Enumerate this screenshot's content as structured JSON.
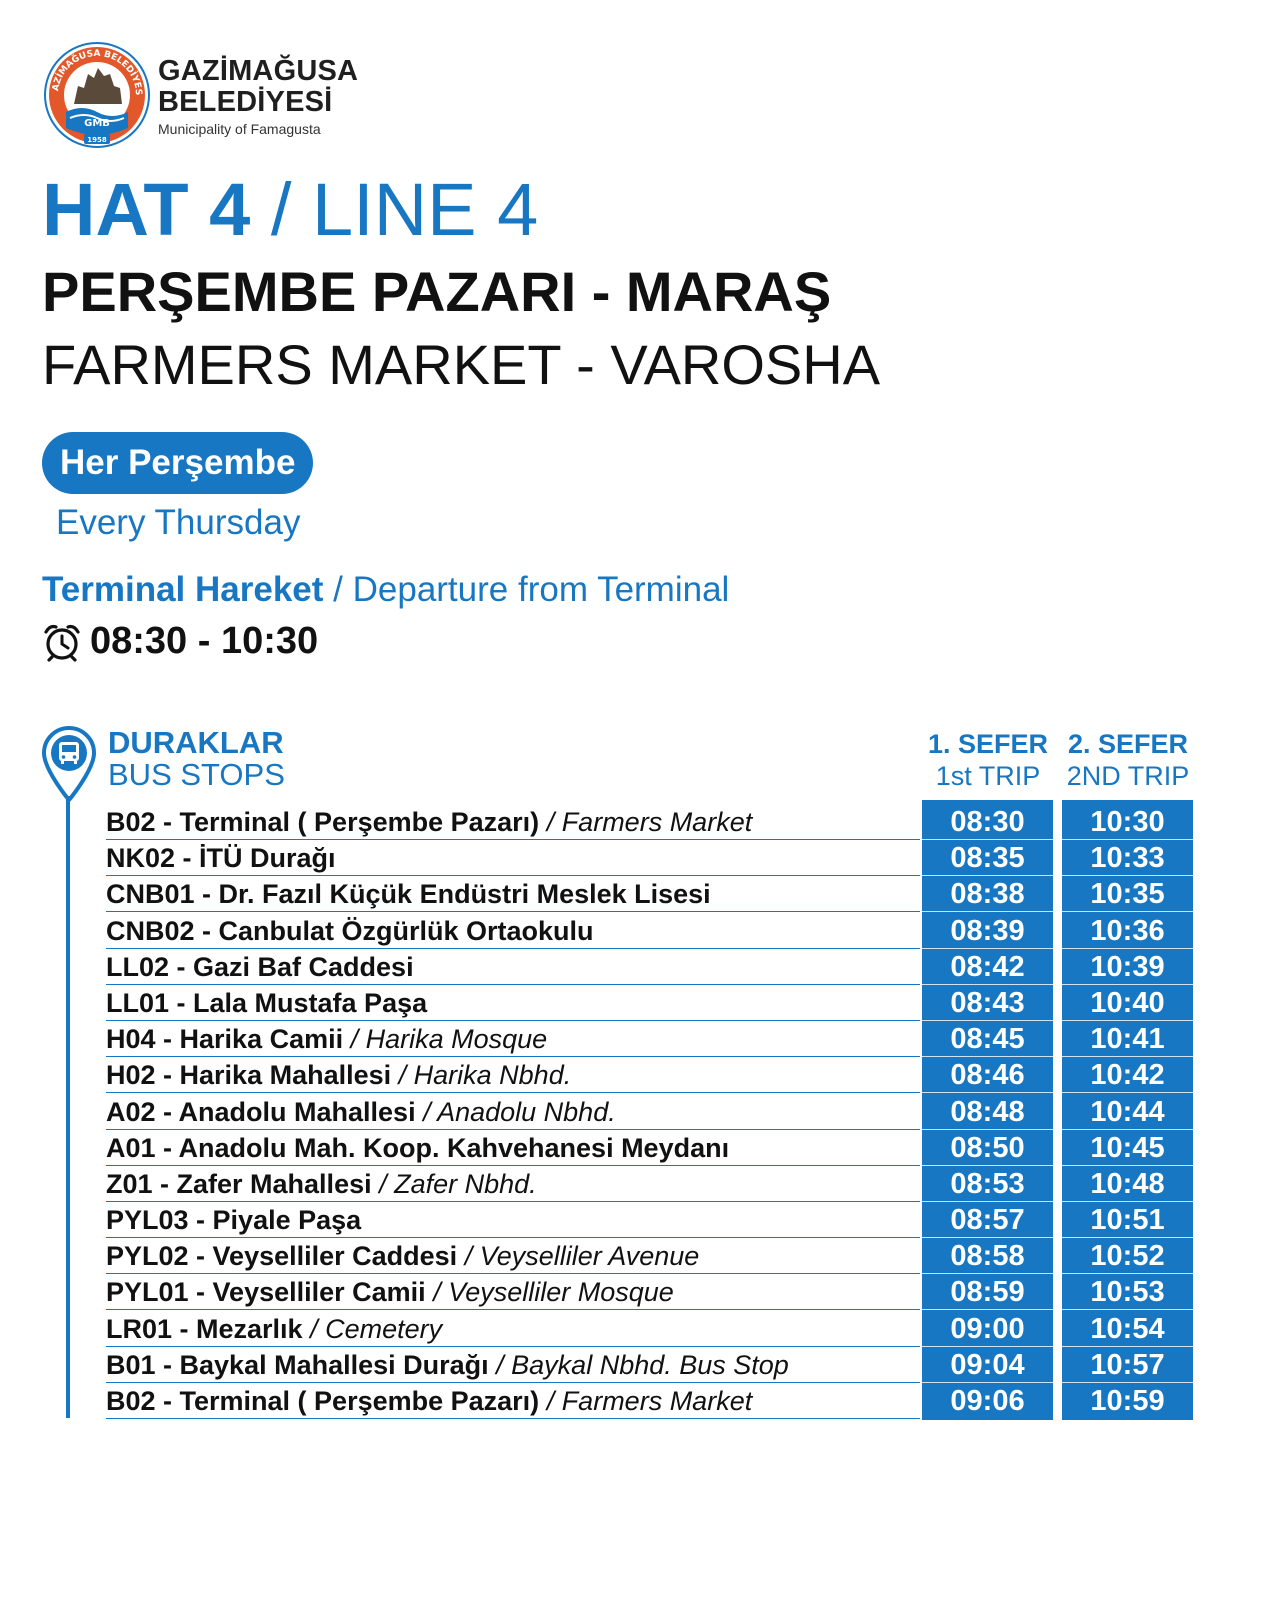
{
  "header": {
    "brand_name_line1": "GAZİMAĞUSA",
    "brand_name_line2": "BELEDİYESİ",
    "brand_subtitle": "Municipality of Famagusta",
    "seal_text": "GAZİMAĞUSA BELEDİYESİ",
    "seal_monogram": "GMB",
    "seal_year": "1958"
  },
  "title": {
    "hat": "HAT 4",
    "separator": " / ",
    "line": "LINE 4",
    "route_tr": "PERŞEMBE PAZARI - MARAŞ",
    "route_en": "FARMERS MARKET - VAROSHA"
  },
  "schedule": {
    "day_tr": "Her Perşembe",
    "day_en": "Every Thursday",
    "departure_tr": "Terminal Hareket",
    "departure_sep": " / ",
    "departure_en": "Departure from Terminal",
    "departure_times": "08:30 - 10:30"
  },
  "stops_header": {
    "title_tr": "DURAKLAR",
    "title_en": "BUS STOPS",
    "trip1_tr": "1. SEFER",
    "trip1_en": "1st TRIP",
    "trip2_tr": "2. SEFER",
    "trip2_en": "2ND TRIP"
  },
  "stops": [
    {
      "name": "B02 - Terminal ( Perşembe Pazarı)",
      "en": " / Farmers Market",
      "t1": "08:30",
      "t2": "10:30"
    },
    {
      "name": "NK02 - İTÜ Durağı",
      "en": "",
      "t1": "08:35",
      "t2": "10:33"
    },
    {
      "name": "CNB01 - Dr. Fazıl Küçük Endüstri Meslek Lisesi",
      "en": "",
      "t1": "08:38",
      "t2": "10:35"
    },
    {
      "name": "CNB02 - Canbulat Özgürlük Ortaokulu",
      "en": "",
      "t1": "08:39",
      "t2": "10:36"
    },
    {
      "name": "LL02 - Gazi Baf Caddesi",
      "en": "",
      "t1": "08:42",
      "t2": "10:39"
    },
    {
      "name": "LL01 - Lala Mustafa Paşa",
      "en": "",
      "t1": "08:43",
      "t2": "10:40"
    },
    {
      "name": "H04 - Harika Camii",
      "en": " / Harika Mosque",
      "t1": "08:45",
      "t2": "10:41"
    },
    {
      "name": "H02 - Harika Mahallesi",
      "en": " / Harika Nbhd.",
      "t1": "08:46",
      "t2": "10:42"
    },
    {
      "name": "A02 - Anadolu Mahallesi",
      "en": " / Anadolu Nbhd.",
      "t1": "08:48",
      "t2": "10:44"
    },
    {
      "name": "A01 - Anadolu Mah. Koop. Kahvehanesi Meydanı",
      "en": "",
      "t1": "08:50",
      "t2": "10:45"
    },
    {
      "name": "Z01 - Zafer Mahallesi",
      "en": " / Zafer Nbhd.",
      "t1": "08:53",
      "t2": "10:48"
    },
    {
      "name": "PYL03 - Piyale Paşa",
      "en": "",
      "t1": "08:57",
      "t2": "10:51"
    },
    {
      "name": "PYL02 - Veyselliler Caddesi",
      "en": " / Veyselliler Avenue",
      "t1": "08:58",
      "t2": "10:52"
    },
    {
      "name": "PYL01 - Veyselliler Camii",
      "en": " / Veyselliler Mosque",
      "t1": "08:59",
      "t2": "10:53"
    },
    {
      "name": "LR01 - Mezarlık",
      "en": " / Cemetery",
      "t1": "09:00",
      "t2": "10:54"
    },
    {
      "name": "B01 - Baykal Mahallesi Durağı",
      "en": " / Baykal Nbhd. Bus Stop",
      "t1": "09:04",
      "t2": "10:57"
    },
    {
      "name": "B02 - Terminal ( Perşembe Pazarı)",
      "en": " / Farmers Market",
      "t1": "09:06",
      "t2": "10:59"
    }
  ],
  "colors": {
    "brand_blue": "#1877c2",
    "text_dark": "#111111",
    "seal_orange": "#e2582a"
  },
  "icons": [
    "municipality-seal-icon",
    "alarm-clock-icon",
    "bus-stop-pin-icon"
  ]
}
